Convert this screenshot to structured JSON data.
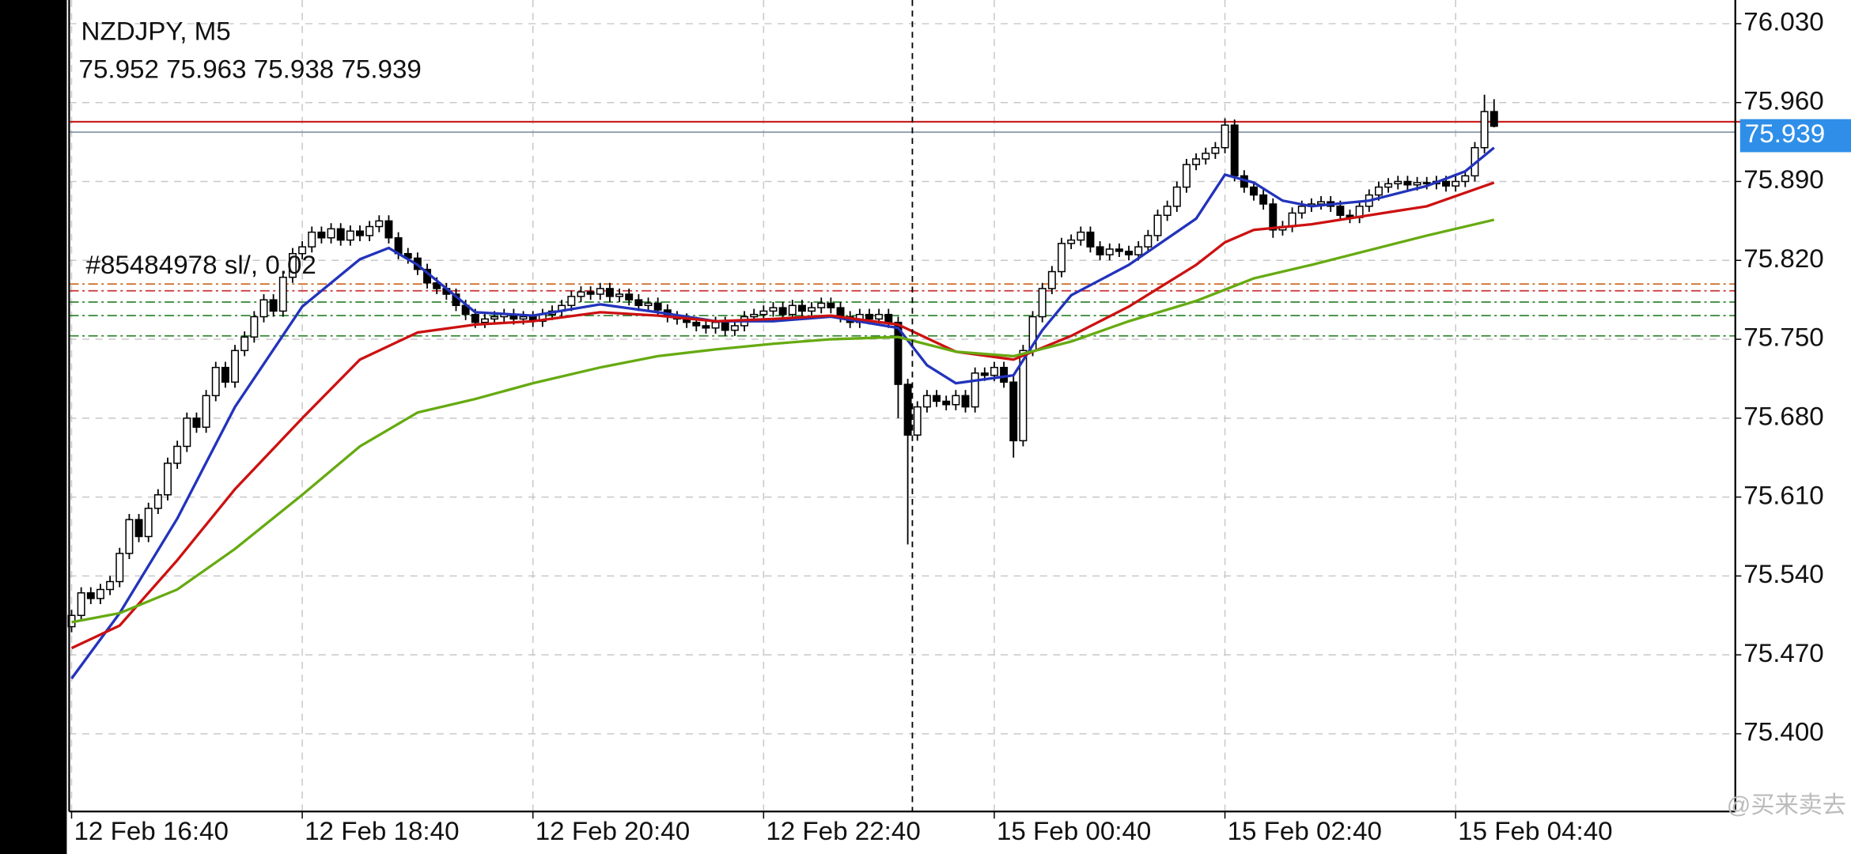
{
  "chart_data": {
    "type": "candlestick",
    "title": "NZDJPY, M5",
    "annotation": "#85484978 sl/, 0.02",
    "watermark": "@买来卖去",
    "up_color": "#ffffff",
    "down_color": "#000000",
    "grid": true,
    "open": [
      75.495,
      75.505,
      75.525,
      75.52,
      75.528,
      75.535,
      75.56,
      75.59,
      75.575,
      75.6,
      75.612,
      75.64,
      75.655,
      75.68,
      75.672,
      75.7,
      75.725,
      75.712,
      75.74,
      75.752,
      75.77,
      75.785,
      75.775,
      75.805,
      75.826,
      75.832,
      75.845,
      75.84,
      75.848,
      75.838,
      75.846,
      75.842,
      75.85,
      75.855,
      75.84,
      75.826,
      75.822,
      75.812,
      75.8,
      75.795,
      75.79,
      75.78,
      75.772,
      75.765,
      75.768,
      75.77,
      75.772,
      75.768,
      75.77,
      75.766,
      75.772,
      75.775,
      75.78,
      75.788,
      75.792,
      75.79,
      75.795,
      75.788,
      75.79,
      75.785,
      75.78,
      75.782,
      75.776,
      75.77,
      75.768,
      75.765,
      75.762,
      75.76,
      75.765,
      75.758,
      75.762,
      75.77,
      75.772,
      75.775,
      75.778,
      75.772,
      75.78,
      75.775,
      75.778,
      75.782,
      75.778,
      75.77,
      75.765,
      75.772,
      75.768,
      75.772,
      75.765,
      75.71,
      75.665,
      75.69,
      75.7,
      75.695,
      75.692,
      75.7,
      75.69,
      75.72,
      75.718,
      75.725,
      75.712,
      75.66,
      75.74,
      75.77,
      75.795,
      75.81,
      75.835,
      75.838,
      75.845,
      75.832,
      75.825,
      75.83,
      75.828,
      75.825,
      75.832,
      75.842,
      75.86,
      75.868,
      75.885,
      75.905,
      75.91,
      75.915,
      75.92,
      75.94,
      75.895,
      75.885,
      75.878,
      75.87,
      75.847,
      75.85,
      75.862,
      75.868,
      75.87,
      75.872,
      75.868,
      75.86,
      75.858,
      75.868,
      75.878,
      75.885,
      75.888,
      75.89,
      75.887,
      75.889,
      75.888,
      75.89,
      75.886,
      75.89,
      75.895,
      75.92,
      75.952
    ],
    "high": [
      75.51,
      75.53,
      75.53,
      75.533,
      75.54,
      75.565,
      75.595,
      75.595,
      75.605,
      75.617,
      75.645,
      75.66,
      75.685,
      75.685,
      75.705,
      75.73,
      75.73,
      75.745,
      75.757,
      75.775,
      75.79,
      75.79,
      75.81,
      75.831,
      75.837,
      75.85,
      75.85,
      75.853,
      75.853,
      75.851,
      75.851,
      75.855,
      75.86,
      75.86,
      75.845,
      75.831,
      75.827,
      75.817,
      75.805,
      75.8,
      75.795,
      75.785,
      75.777,
      75.773,
      75.775,
      75.777,
      75.777,
      75.775,
      75.775,
      75.777,
      75.78,
      75.785,
      75.793,
      75.797,
      75.797,
      75.8,
      75.8,
      75.795,
      75.795,
      75.79,
      75.787,
      75.787,
      75.781,
      75.775,
      75.773,
      75.77,
      75.767,
      75.77,
      75.77,
      75.767,
      75.775,
      75.777,
      75.78,
      75.783,
      75.783,
      75.785,
      75.785,
      75.783,
      75.787,
      75.787,
      75.783,
      75.775,
      75.777,
      75.777,
      75.777,
      75.777,
      75.77,
      75.715,
      75.695,
      75.705,
      75.705,
      75.7,
      75.705,
      75.705,
      75.725,
      75.725,
      75.73,
      75.73,
      75.717,
      75.745,
      75.775,
      75.8,
      75.815,
      75.84,
      75.843,
      75.85,
      75.85,
      75.837,
      75.835,
      75.835,
      75.833,
      75.837,
      75.847,
      75.865,
      75.873,
      75.89,
      75.91,
      75.915,
      75.92,
      75.925,
      75.946,
      75.945,
      75.9,
      75.89,
      75.883,
      75.875,
      75.855,
      75.867,
      75.873,
      75.875,
      75.877,
      75.877,
      75.873,
      75.865,
      75.873,
      75.883,
      75.89,
      75.893,
      75.895,
      75.895,
      75.894,
      75.894,
      75.895,
      75.895,
      75.895,
      75.9,
      75.925,
      75.967,
      75.963
    ],
    "low": [
      75.49,
      75.5,
      75.515,
      75.515,
      75.523,
      75.53,
      75.555,
      75.57,
      75.57,
      75.595,
      75.607,
      75.635,
      75.65,
      75.667,
      75.667,
      75.695,
      75.707,
      75.707,
      75.735,
      75.747,
      75.765,
      75.77,
      75.77,
      75.8,
      75.821,
      75.827,
      75.835,
      75.835,
      75.833,
      75.833,
      75.837,
      75.837,
      75.845,
      75.835,
      75.821,
      75.817,
      75.807,
      75.795,
      75.79,
      75.785,
      75.775,
      75.767,
      75.76,
      75.76,
      75.763,
      75.765,
      75.763,
      75.763,
      75.761,
      75.761,
      75.767,
      75.77,
      75.775,
      75.783,
      75.785,
      75.785,
      75.783,
      75.783,
      75.78,
      75.775,
      75.775,
      75.771,
      75.765,
      75.763,
      75.76,
      75.757,
      75.755,
      75.755,
      75.753,
      75.753,
      75.757,
      75.765,
      75.767,
      75.77,
      75.767,
      75.767,
      75.77,
      75.77,
      75.773,
      75.773,
      75.765,
      75.76,
      75.76,
      75.763,
      75.763,
      75.76,
      75.68,
      75.568,
      75.66,
      75.685,
      75.69,
      75.687,
      75.687,
      75.685,
      75.685,
      75.713,
      75.713,
      75.707,
      75.645,
      75.655,
      75.735,
      75.765,
      75.79,
      75.805,
      75.83,
      75.833,
      75.827,
      75.82,
      75.82,
      75.823,
      75.82,
      75.82,
      75.827,
      75.837,
      75.855,
      75.863,
      75.88,
      75.9,
      75.905,
      75.91,
      75.915,
      75.89,
      75.88,
      75.873,
      75.865,
      75.84,
      75.842,
      75.845,
      75.857,
      75.863,
      75.865,
      75.863,
      75.855,
      75.853,
      75.853,
      75.863,
      75.873,
      75.88,
      75.883,
      75.882,
      75.882,
      75.883,
      75.883,
      75.881,
      75.881,
      75.885,
      75.89,
      75.915,
      75.938
    ],
    "close": [
      75.505,
      75.525,
      75.52,
      75.528,
      75.535,
      75.56,
      75.59,
      75.575,
      75.6,
      75.612,
      75.64,
      75.655,
      75.68,
      75.672,
      75.7,
      75.725,
      75.712,
      75.74,
      75.752,
      75.77,
      75.785,
      75.775,
      75.805,
      75.826,
      75.832,
      75.845,
      75.84,
      75.848,
      75.838,
      75.846,
      75.842,
      75.85,
      75.855,
      75.84,
      75.826,
      75.822,
      75.812,
      75.8,
      75.795,
      75.79,
      75.78,
      75.772,
      75.765,
      75.768,
      75.77,
      75.772,
      75.768,
      75.77,
      75.766,
      75.772,
      75.775,
      75.78,
      75.788,
      75.792,
      75.79,
      75.795,
      75.788,
      75.79,
      75.785,
      75.78,
      75.782,
      75.776,
      75.77,
      75.768,
      75.765,
      75.762,
      75.76,
      75.765,
      75.758,
      75.762,
      75.77,
      75.772,
      75.775,
      75.778,
      75.772,
      75.78,
      75.775,
      75.778,
      75.782,
      75.778,
      75.77,
      75.765,
      75.772,
      75.768,
      75.772,
      75.765,
      75.71,
      75.665,
      75.69,
      75.7,
      75.695,
      75.692,
      75.7,
      75.69,
      75.72,
      75.718,
      75.725,
      75.712,
      75.66,
      75.74,
      75.77,
      75.795,
      75.81,
      75.835,
      75.838,
      75.845,
      75.832,
      75.825,
      75.83,
      75.828,
      75.825,
      75.832,
      75.842,
      75.86,
      75.868,
      75.885,
      75.905,
      75.91,
      75.915,
      75.92,
      75.94,
      75.895,
      75.885,
      75.878,
      75.87,
      75.847,
      75.85,
      75.862,
      75.868,
      75.87,
      75.872,
      75.868,
      75.86,
      75.858,
      75.868,
      75.878,
      75.885,
      75.888,
      75.89,
      75.887,
      75.889,
      75.888,
      75.89,
      75.886,
      75.89,
      75.895,
      75.92,
      75.952,
      75.939
    ],
    "series": [
      {
        "color": "#2233bb",
        "x": [
          0,
          5,
          11,
          17,
          24,
          30,
          33,
          36,
          42,
          48,
          55,
          61,
          67,
          73,
          79,
          86,
          89,
          92,
          98,
          101,
          104,
          110,
          117,
          120,
          123,
          126,
          129,
          135,
          141,
          145,
          148
        ],
        "values": [
          75.449,
          75.507,
          75.591,
          75.69,
          75.779,
          75.821,
          75.831,
          75.816,
          75.774,
          75.771,
          75.781,
          75.774,
          75.766,
          75.766,
          75.77,
          75.76,
          75.727,
          75.711,
          75.718,
          75.758,
          75.789,
          75.816,
          75.857,
          75.896,
          75.889,
          75.873,
          75.868,
          75.873,
          75.886,
          75.899,
          75.92
        ]
      },
      {
        "color": "#cc1111",
        "x": [
          0,
          5,
          11,
          17,
          24,
          30,
          36,
          42,
          48,
          55,
          61,
          67,
          73,
          79,
          86,
          92,
          98,
          104,
          110,
          117,
          120,
          123,
          129,
          135,
          141,
          148
        ],
        "values": [
          75.476,
          75.496,
          75.554,
          75.617,
          75.68,
          75.732,
          75.756,
          75.763,
          75.766,
          75.774,
          75.771,
          75.766,
          75.768,
          75.771,
          75.763,
          75.739,
          75.732,
          75.753,
          75.779,
          75.816,
          75.836,
          75.847,
          75.852,
          75.86,
          75.868,
          75.889
        ]
      },
      {
        "color": "#66aa11",
        "x": [
          0,
          5,
          11,
          17,
          24,
          30,
          36,
          42,
          48,
          55,
          61,
          67,
          73,
          79,
          86,
          92,
          98,
          104,
          110,
          117,
          123,
          129,
          135,
          141,
          148
        ],
        "values": [
          75.499,
          75.507,
          75.528,
          75.564,
          75.612,
          75.655,
          75.685,
          75.697,
          75.711,
          75.725,
          75.735,
          75.741,
          75.746,
          75.75,
          75.752,
          75.739,
          75.735,
          75.748,
          75.766,
          75.784,
          75.804,
          75.816,
          75.829,
          75.842,
          75.856
        ]
      }
    ],
    "levels": [
      {
        "value": 75.799,
        "color": "#d07030"
      },
      {
        "value": 75.793,
        "color": "#cc3333"
      },
      {
        "value": 75.783,
        "color": "#338833"
      },
      {
        "value": 75.771,
        "color": "#338833"
      },
      {
        "value": 75.753,
        "color": "#338833"
      }
    ],
    "bid": 75.939,
    "ask": 75.943,
    "xlim": [
      -0.25,
      173.1
    ],
    "xticks": [
      {
        "value": 0,
        "label": "12 Feb 16:40"
      },
      {
        "value": 24,
        "label": "12 Feb 18:40"
      },
      {
        "value": 48,
        "label": "12 Feb 20:40"
      },
      {
        "value": 72,
        "label": "12 Feb 22:40"
      },
      {
        "value": 96,
        "label": "15 Feb 00:40"
      },
      {
        "value": 120,
        "label": "15 Feb 02:40"
      },
      {
        "value": 144,
        "label": "15 Feb 04:40"
      }
    ],
    "ylim": [
      75.331,
      76.051
    ],
    "yticks": [
      {
        "value": 76.03,
        "label": "76.030"
      },
      {
        "value": 75.96,
        "label": "75.960"
      },
      {
        "value": 75.89,
        "label": "75.890"
      },
      {
        "value": 75.82,
        "label": "75.820"
      },
      {
        "value": 75.75,
        "label": "75.750"
      },
      {
        "value": 75.68,
        "label": "75.680"
      },
      {
        "value": 75.61,
        "label": "75.610"
      },
      {
        "value": 75.54,
        "label": "75.540"
      },
      {
        "value": 75.47,
        "label": "75.470"
      },
      {
        "value": 75.4,
        "label": "75.400"
      }
    ]
  }
}
